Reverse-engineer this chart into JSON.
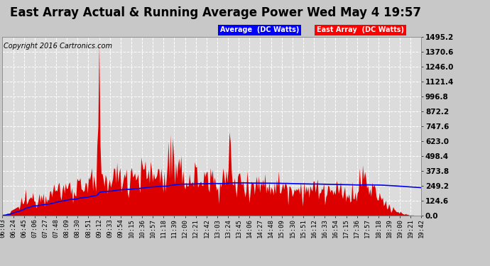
{
  "title": "East Array Actual & Running Average Power Wed May 4 19:57",
  "copyright": "Copyright 2016 Cartronics.com",
  "legend_avg": "Average  (DC Watts)",
  "legend_east": "East Array  (DC Watts)",
  "ylim": [
    0,
    1495.2
  ],
  "yticks": [
    0.0,
    124.6,
    249.2,
    373.8,
    498.4,
    623.0,
    747.6,
    872.2,
    996.8,
    1121.4,
    1246.0,
    1370.6,
    1495.2
  ],
  "bg_color": "#c8c8c8",
  "plot_bg_color": "#dcdcdc",
  "grid_color": "#ffffff",
  "bar_color": "#dd0000",
  "avg_line_color": "#0000ee",
  "title_fontsize": 12,
  "copyright_fontsize": 7,
  "x_label_fontsize": 6.5,
  "y_label_fontsize": 7.5,
  "x_tick_labels": [
    "06:03",
    "06:24",
    "06:45",
    "07:06",
    "07:27",
    "07:48",
    "08:09",
    "08:30",
    "08:51",
    "09:12",
    "09:33",
    "09:54",
    "10:15",
    "10:36",
    "10:57",
    "11:18",
    "11:39",
    "12:00",
    "12:21",
    "12:42",
    "13:03",
    "13:24",
    "13:45",
    "14:06",
    "14:27",
    "14:48",
    "15:09",
    "15:30",
    "15:51",
    "16:12",
    "16:33",
    "16:54",
    "17:15",
    "17:36",
    "17:57",
    "18:18",
    "18:39",
    "19:00",
    "19:21",
    "19:42"
  ]
}
